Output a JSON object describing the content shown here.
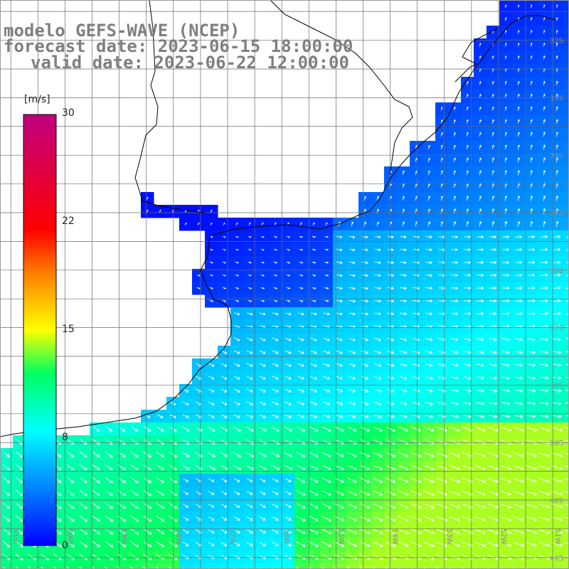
{
  "title": {
    "line1": "modelo GEFS-WAVE (NCEP)",
    "line2": "forecast date: 2023-06-15 18:00:00",
    "line3": "valid date: 2023-06-22 12:00:00"
  },
  "colorbar": {
    "unit": "[m/s]",
    "ticks": [
      "30",
      "22",
      "15",
      "8",
      "0"
    ],
    "tick_values": [
      30,
      22,
      15,
      8,
      0
    ],
    "range": [
      0,
      30
    ],
    "colors": [
      "#0000ff",
      "#0099ff",
      "#00ffff",
      "#00ff00",
      "#ffff00",
      "#ff8800",
      "#ff0000",
      "#cc0066"
    ]
  },
  "axes": {
    "lat_labels": [
      "32S",
      "33S",
      "34S",
      "35S",
      "36S",
      "37S",
      "38S",
      "39S",
      "40S",
      "41S"
    ],
    "lon_labels": [
      "61W",
      "60W",
      "59W",
      "58W",
      "57W",
      "56W",
      "55W",
      "54W",
      "53W",
      "52W",
      "51W"
    ],
    "lat_range": [
      -41.2,
      -31.3
    ],
    "lon_range": [
      -61.2,
      -50.7
    ],
    "grid": true
  },
  "field": {
    "variable": "wind speed",
    "units": "m/s",
    "arrows": true
  }
}
